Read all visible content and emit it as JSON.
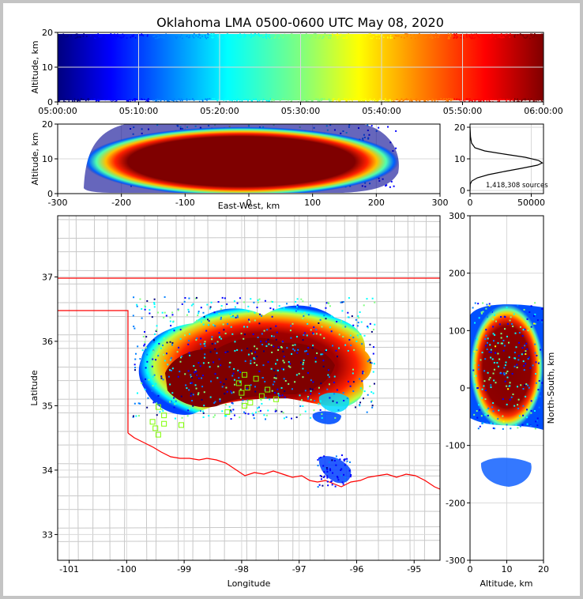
{
  "title": "Oklahoma LMA 0500-0600 UTC May 08, 2020",
  "colors": {
    "jet": [
      "#00007f",
      "#0000ff",
      "#007fff",
      "#00ffff",
      "#7fff7f",
      "#ffff00",
      "#ff7f00",
      "#ff0000",
      "#7f0000"
    ],
    "state_line": "#ff0000",
    "county_line": "#c8c8c8",
    "station": "#7fff00"
  },
  "chart_data": [
    {
      "id": "time_height",
      "type": "scatter",
      "xlabel": "",
      "ylabel": "Altitude, km",
      "x_tick_labels": [
        "05:00:00",
        "05:10:00",
        "05:20:00",
        "05:30:00",
        "05:40:00",
        "05:50:00",
        "06:00:00"
      ],
      "xlim": [
        "05:00:00",
        "06:00:00"
      ],
      "y_ticks": [
        0,
        10,
        20
      ],
      "ylim": [
        0,
        20
      ],
      "grid": true,
      "color_by": "time"
    },
    {
      "id": "east_west_altitude",
      "type": "scatter",
      "xlabel": "East-West, km",
      "ylabel": "Altitude, km",
      "x_ticks": [
        -300,
        -200,
        -100,
        0,
        100,
        200,
        300
      ],
      "xlim": [
        -300,
        300
      ],
      "y_ticks": [
        0,
        10,
        20
      ],
      "ylim": [
        0,
        20
      ],
      "grid": true
    },
    {
      "id": "altitude_histogram",
      "type": "line",
      "xlabel": "",
      "ylabel": "",
      "x_ticks": [
        0,
        50000
      ],
      "xlim": [
        0,
        60000
      ],
      "y_ticks": [
        0,
        10,
        20
      ],
      "ylim": [
        0,
        21
      ],
      "annotation": "1,418,308 sources",
      "x": [
        0,
        200,
        1500,
        6000,
        15000,
        28000,
        42000,
        55000,
        59000,
        56000,
        45000,
        28000,
        12000,
        4000,
        1200,
        400,
        0
      ],
      "y": [
        0,
        2,
        3,
        4,
        5,
        6,
        7,
        8,
        8.7,
        9.5,
        10.5,
        11.5,
        12.5,
        13.5,
        15,
        17,
        20
      ],
      "grid": true
    },
    {
      "id": "plan_view",
      "type": "scatter",
      "xlabel": "Longitude",
      "ylabel": "Latitude",
      "x_ticks": [
        -101,
        -100,
        -99,
        -98,
        -97,
        -96,
        -95
      ],
      "xlim": [
        -101.2,
        -94.55
      ],
      "y_ticks": [
        33,
        34,
        35,
        36,
        37
      ],
      "ylim": [
        32.6,
        37.95
      ],
      "grid": true,
      "station_markers": [
        {
          "lon": -99.45,
          "lat": 34.55
        },
        {
          "lon": -99.5,
          "lat": 34.65
        },
        {
          "lon": -99.55,
          "lat": 34.75
        },
        {
          "lon": -99.35,
          "lat": 34.85
        },
        {
          "lon": -99.45,
          "lat": 34.98
        },
        {
          "lon": -99.35,
          "lat": 34.72
        },
        {
          "lon": -99.05,
          "lat": 34.7
        },
        {
          "lon": -98.25,
          "lat": 34.9
        },
        {
          "lon": -98.05,
          "lat": 35.35
        },
        {
          "lon": -97.95,
          "lat": 35.48
        },
        {
          "lon": -97.9,
          "lat": 35.28
        },
        {
          "lon": -98.0,
          "lat": 35.2
        },
        {
          "lon": -97.85,
          "lat": 35.05
        },
        {
          "lon": -97.75,
          "lat": 35.42
        },
        {
          "lon": -97.65,
          "lat": 35.15
        },
        {
          "lon": -97.55,
          "lat": 35.25
        },
        {
          "lon": -97.4,
          "lat": 35.1
        },
        {
          "lon": -97.95,
          "lat": 35.0
        }
      ]
    },
    {
      "id": "north_south_altitude",
      "type": "scatter",
      "xlabel": "Altitude, km",
      "ylabel": "North-South, km",
      "x_ticks": [
        0,
        10,
        20
      ],
      "xlim": [
        0,
        20
      ],
      "y_ticks": [
        -300,
        -200,
        -100,
        0,
        100,
        200,
        300
      ],
      "ylim": [
        -300,
        300
      ],
      "grid": true
    }
  ]
}
